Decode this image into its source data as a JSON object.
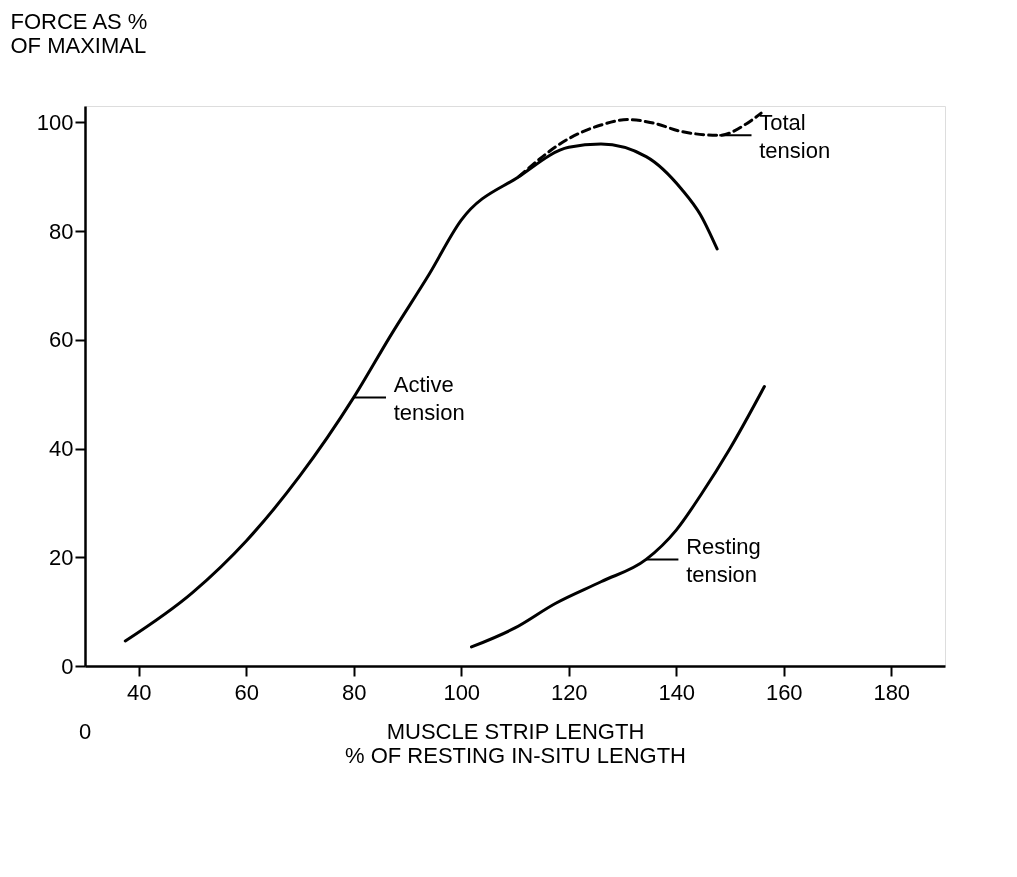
{
  "chart_data": {
    "type": "line",
    "ylabel": "FORCE AS %\nOF MAXIMAL",
    "xlabel": "MUSCLE  STRIP  LENGTH\n% OF  RESTING  IN-SITU  LENGTH",
    "xlim": [
      30,
      190
    ],
    "ylim": [
      0,
      103
    ],
    "xticks": [
      40,
      60,
      80,
      100,
      120,
      140,
      160,
      180
    ],
    "yticks": [
      0,
      20,
      40,
      60,
      80,
      100
    ],
    "grid": false,
    "marker": "none",
    "series": [
      {
        "color": "#000000",
        "line_style": "solid",
        "x": [
          37.5,
          50,
          60,
          70,
          80,
          87,
          94,
          100,
          110.7,
          120,
          126,
          134.4,
          141,
          144.5,
          147.6
        ],
        "values": [
          4.6,
          13.5,
          23,
          35,
          49.4,
          61,
          72,
          82,
          90,
          95.4,
          96,
          93.7,
          87.7,
          83,
          76.7
        ]
      },
      {
        "color": "#000000",
        "line_style": "dashed",
        "x": [
          110.7,
          120,
          126,
          131,
          136,
          141,
          148,
          153,
          155.8
        ],
        "values": [
          90,
          97,
          99.5,
          100.5,
          99.8,
          98.3,
          97.6,
          99.7,
          101.7
        ]
      },
      {
        "color": "#000000",
        "line_style": "solid",
        "x": [
          101.9,
          110,
          117.5,
          126,
          134.4,
          140,
          144.6,
          150,
          156.4
        ],
        "values": [
          3.5,
          7,
          11.5,
          15.5,
          19.6,
          25,
          31.5,
          40,
          51.4
        ]
      }
    ],
    "annotations": [
      "0",
      {
        "text": "Active\ntension",
        "x": 80,
        "y": 49.4
      },
      {
        "text": "Total\ntension",
        "x": 148,
        "y": 97.6
      },
      {
        "text": "Resting\ntension",
        "x": 134.4,
        "y": 19.6
      }
    ]
  }
}
